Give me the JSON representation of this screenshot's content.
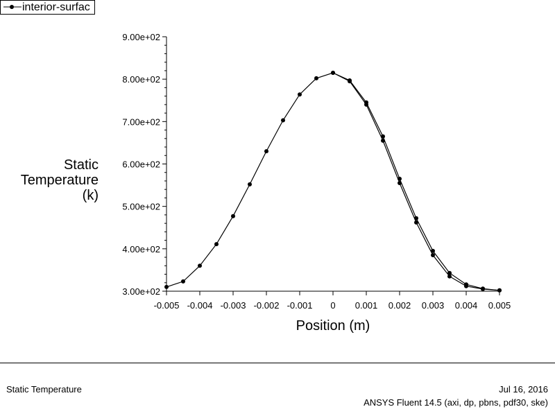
{
  "chart_data": {
    "type": "line",
    "title": "",
    "xlabel": "Position (m)",
    "ylabel_lines": [
      "Static",
      "Temperature",
      "(k)"
    ],
    "xlim": [
      -0.005,
      0.005
    ],
    "ylim": [
      300,
      900
    ],
    "x_ticks": [
      -0.005,
      -0.004,
      -0.003,
      -0.002,
      -0.001,
      0,
      0.001,
      0.002,
      0.003,
      0.004,
      0.005
    ],
    "x_tick_labels": [
      "-0.005",
      "-0.004",
      "-0.003",
      "-0.002",
      "-0.001",
      "0",
      "0.001",
      "0.002",
      "0.003",
      "0.004",
      "0.005"
    ],
    "y_ticks": [
      300,
      400,
      500,
      600,
      700,
      800,
      900
    ],
    "y_tick_labels": [
      "3.00e+02",
      "4.00e+02",
      "5.00e+02",
      "6.00e+02",
      "7.00e+02",
      "8.00e+02",
      "9.00e+02"
    ],
    "grid": false,
    "legend_position": "top-left",
    "series": [
      {
        "name": "interior-surfac",
        "color": "#000000",
        "marker": "circle",
        "x": [
          -0.005,
          -0.0045,
          -0.004,
          -0.0035,
          -0.003,
          -0.0025,
          -0.002,
          -0.0015,
          -0.001,
          -0.0005,
          0,
          0.0005,
          0.001,
          0.0015,
          0.002,
          0.0025,
          0.003,
          0.0035,
          0.004,
          0.0045,
          0.005
        ],
        "y": [
          310,
          323,
          360,
          411,
          477,
          552,
          630,
          703,
          764,
          802,
          815,
          795,
          740,
          655,
          555,
          462,
          385,
          335,
          312,
          305,
          302
        ]
      },
      {
        "name": "",
        "color": "#000000",
        "marker": "circle",
        "x": [
          0,
          0.0005,
          0.001,
          0.0015,
          0.002,
          0.0025,
          0.003,
          0.0035,
          0.004,
          0.0045,
          0.005
        ],
        "y": [
          815,
          797,
          745,
          665,
          565,
          472,
          395,
          343,
          316,
          306,
          302
        ]
      }
    ]
  },
  "footer": {
    "left": "Static Temperature",
    "date": "Jul 16, 2016",
    "version": "ANSYS Fluent 14.5 (axi, dp, pbns, pdf30, ske)"
  }
}
